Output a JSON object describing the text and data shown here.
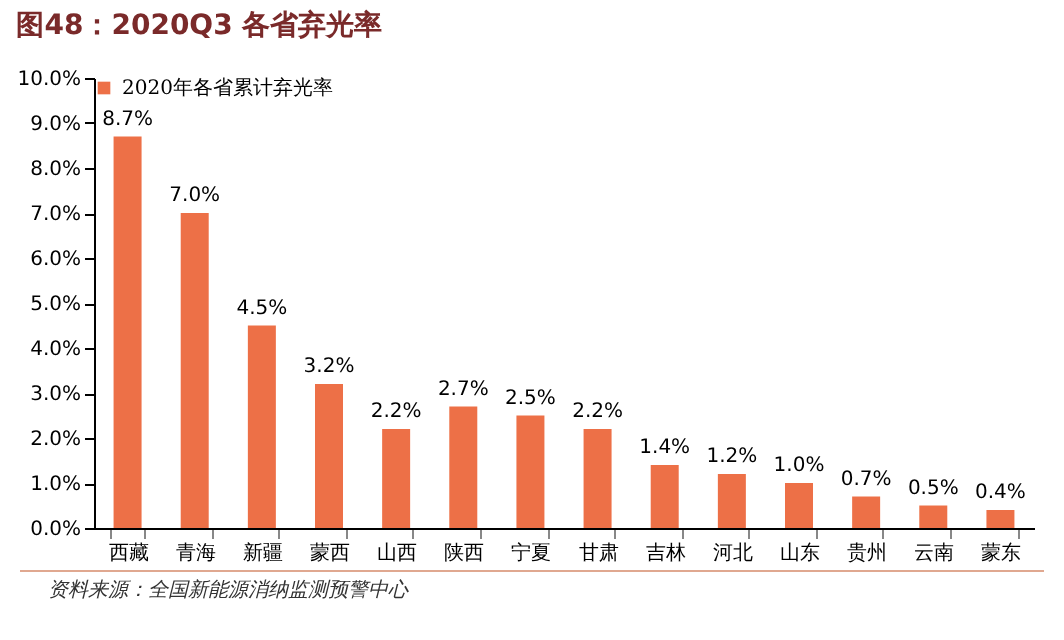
{
  "chart_data": {
    "type": "bar",
    "title": "图48：2020Q3 各省弃光率",
    "categories": [
      "西藏",
      "青海",
      "新疆",
      "蒙西",
      "山西",
      "陕西",
      "宁夏",
      "甘肃",
      "吉林",
      "河北",
      "山东",
      "贵州",
      "云南",
      "蒙东"
    ],
    "series": [
      {
        "name": "2020年各省累计弃光率",
        "color": "#ed7047",
        "values": [
          8.7,
          7.0,
          4.5,
          3.2,
          2.2,
          2.7,
          2.5,
          2.2,
          1.4,
          1.2,
          1.0,
          0.7,
          0.5,
          0.4
        ],
        "value_labels": [
          "8.7%",
          "7.0%",
          "4.5%",
          "3.2%",
          "2.2%",
          "2.7%",
          "2.5%",
          "2.2%",
          "1.4%",
          "1.2%",
          "1.0%",
          "0.7%",
          "0.5%",
          "0.4%"
        ]
      }
    ],
    "ylim": [
      0,
      10
    ],
    "yticks": [
      {
        "value": 0,
        "label": "0.0%"
      },
      {
        "value": 1,
        "label": "1.0%"
      },
      {
        "value": 2,
        "label": "2.0%"
      },
      {
        "value": 3,
        "label": "3.0%"
      },
      {
        "value": 4,
        "label": "4.0%"
      },
      {
        "value": 5,
        "label": "5.0%"
      },
      {
        "value": 6,
        "label": "6.0%"
      },
      {
        "value": 7,
        "label": "7.0%"
      },
      {
        "value": 8,
        "label": "8.0%"
      },
      {
        "value": 9,
        "label": "9.0%"
      },
      {
        "value": 10,
        "label": "10.0%"
      }
    ],
    "legend": "top",
    "grid": false,
    "annotations": [
      "资料来源：全国新能源消纳监测预警中心"
    ]
  }
}
